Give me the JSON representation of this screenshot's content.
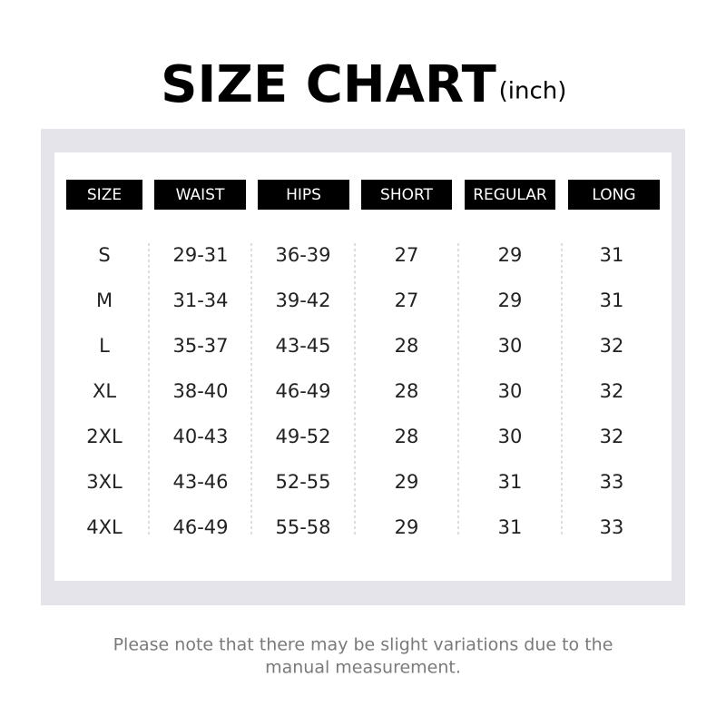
{
  "header": {
    "title": "SIZE CHART",
    "unit": "(inch)"
  },
  "table": {
    "columns": [
      "SIZE",
      "WAIST",
      "HIPS",
      "SHORT",
      "REGULAR",
      "LONG"
    ],
    "rows": [
      [
        "S",
        "29-31",
        "36-39",
        "27",
        "29",
        "31"
      ],
      [
        "M",
        "31-34",
        "39-42",
        "27",
        "29",
        "31"
      ],
      [
        "L",
        "35-37",
        "43-45",
        "28",
        "30",
        "32"
      ],
      [
        "XL",
        "38-40",
        "46-49",
        "28",
        "30",
        "32"
      ],
      [
        "2XL",
        "40-43",
        "49-52",
        "28",
        "30",
        "32"
      ],
      [
        "3XL",
        "43-46",
        "52-55",
        "29",
        "31",
        "33"
      ],
      [
        "4XL",
        "46-49",
        "55-58",
        "29",
        "31",
        "33"
      ]
    ]
  },
  "note": {
    "lines": [
      "Please note that there may be slight variations due to the",
      "manual measurement."
    ]
  }
}
